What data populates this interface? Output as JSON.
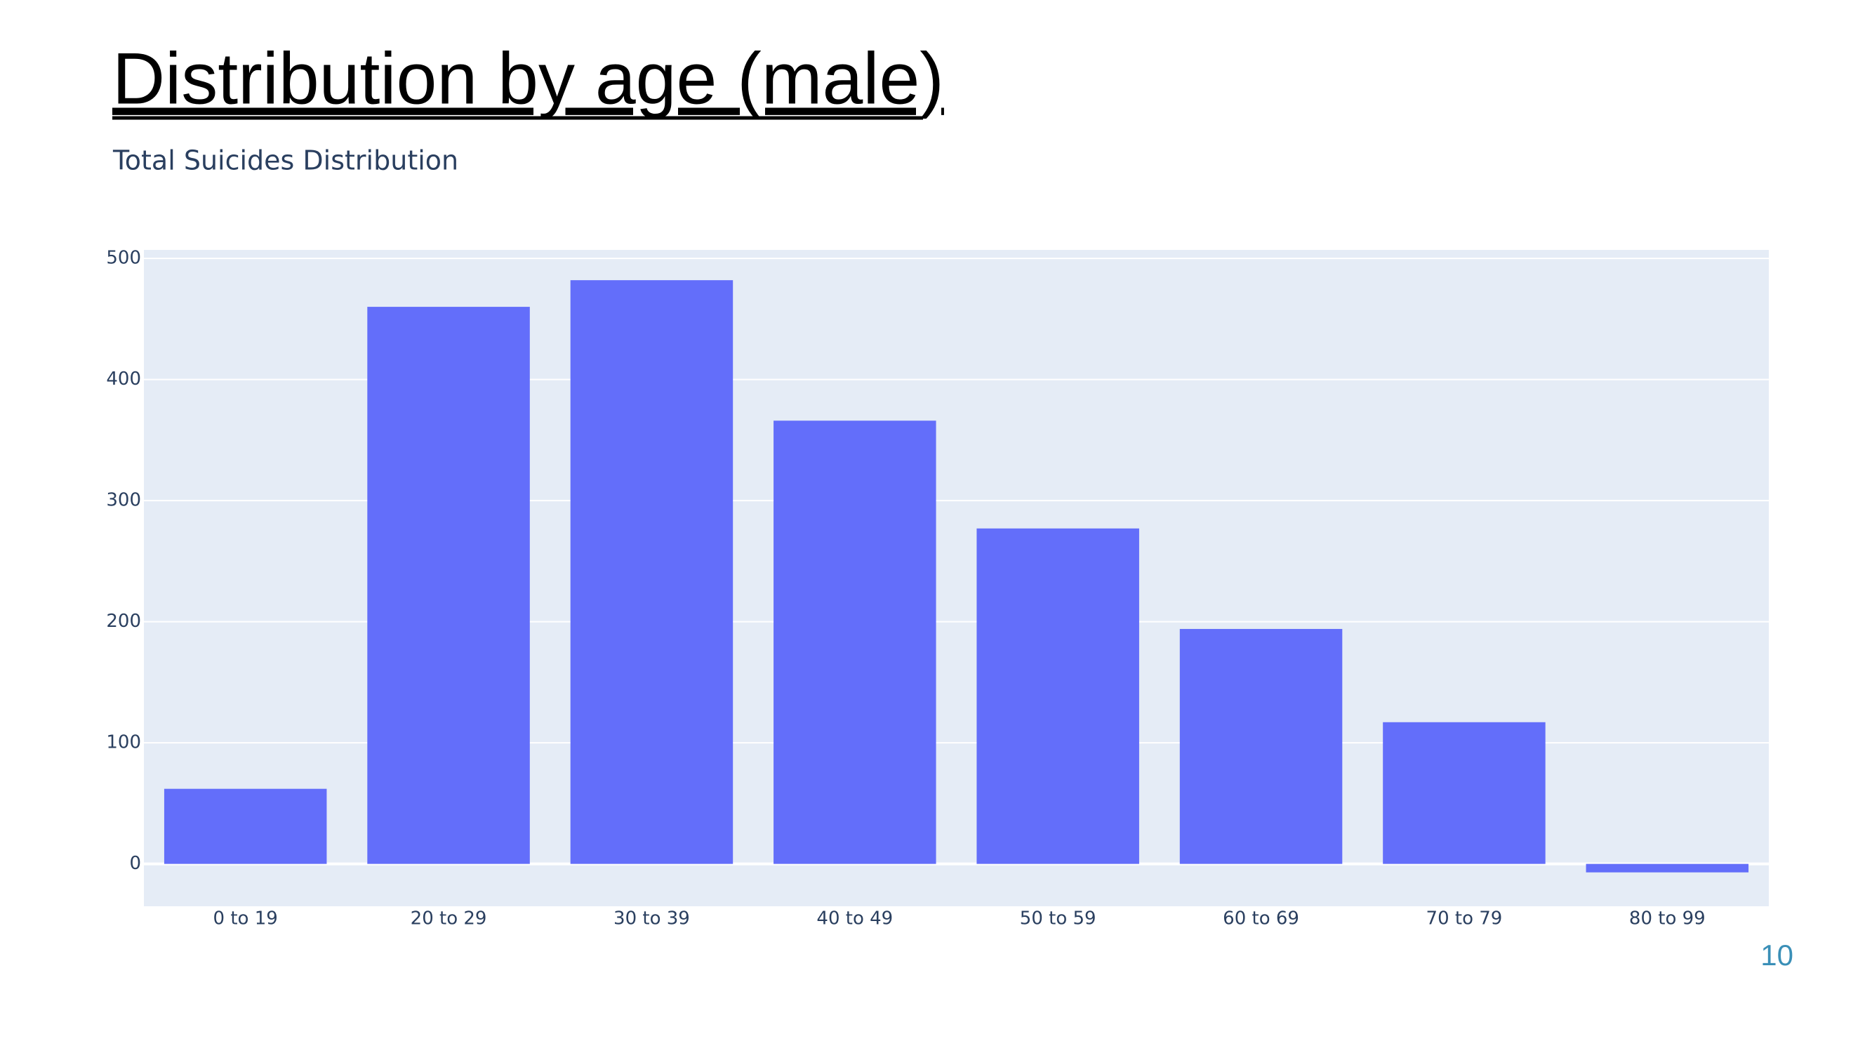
{
  "slide_title": "Distribution by age (male)",
  "page_number": "10",
  "chart_data": {
    "type": "bar",
    "title": "Total Suicides Distribution",
    "categories": [
      "0 to 19",
      "20 to 29",
      "30 to 39",
      "40 to 49",
      "50 to 59",
      "60 to 69",
      "70 to 79",
      "80 to 99"
    ],
    "values": [
      62,
      460,
      482,
      366,
      277,
      194,
      117,
      -7
    ],
    "color": "#636efa",
    "plot_background": "#e5ecf6",
    "ylim": [
      -35,
      507
    ],
    "yticks": [
      0,
      100,
      200,
      300,
      400,
      500
    ],
    "grid": true
  }
}
